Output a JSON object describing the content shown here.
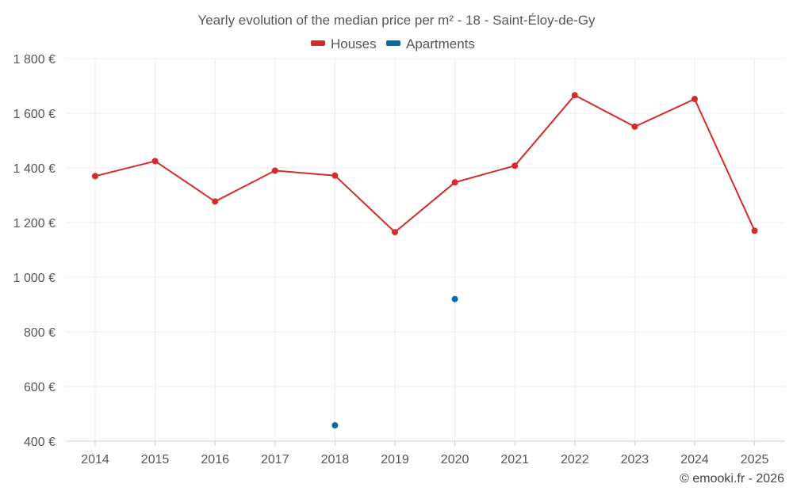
{
  "chart_data": {
    "type": "line",
    "title": "Yearly evolution of the median price per m² - 18 - Saint-Éloy-de-Gy",
    "categories": [
      "2014",
      "2015",
      "2016",
      "2017",
      "2018",
      "2019",
      "2020",
      "2021",
      "2022",
      "2023",
      "2024",
      "2025"
    ],
    "y_tick_labels": [
      "400 €",
      "600 €",
      "800 €",
      "1 000 €",
      "1 200 €",
      "1 400 €",
      "1 600 €",
      "1 800 €"
    ],
    "y_ticks": [
      400,
      600,
      800,
      1000,
      1200,
      1400,
      1600,
      1800
    ],
    "ylim": [
      400,
      1800
    ],
    "grid": true,
    "legend_position": "top-center",
    "series": [
      {
        "name": "Houses",
        "color": "#d32a2a",
        "values": [
          1370,
          1425,
          1277,
          1390,
          1372,
          1165,
          1347,
          1408,
          1666,
          1551,
          1652,
          1170
        ]
      },
      {
        "name": "Apartments",
        "color": "#0b6aa5",
        "values": [
          null,
          null,
          null,
          null,
          458,
          null,
          920,
          null,
          null,
          null,
          null,
          null
        ]
      }
    ],
    "credit": "© emooki.fr - 2026"
  }
}
